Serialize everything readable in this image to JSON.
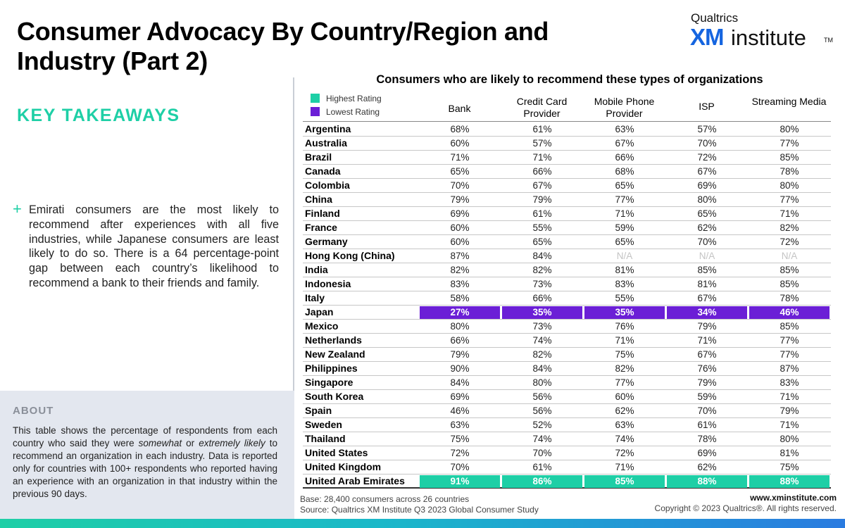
{
  "title": "Consumer Advocacy By Country/Region and Industry (Part 2)",
  "logo": {
    "small": "Qualtrics",
    "xm": "XM",
    "institute": "institute",
    "tm": "TM"
  },
  "key_takeaways": {
    "heading": "KEY TAKEAWAYS",
    "plus": "+",
    "text": "Emirati consumers are the most likely to recommend after experiences with all five industries, while Japanese consumers are least likely to do so. There is a 64 percentage-point gap between each country’s likelihood to recommend a bank to their friends and family."
  },
  "about": {
    "heading": "ABOUT",
    "text_before": "This table shows the percentage of respondents from each country who said they were ",
    "em1": "somewhat",
    "text_mid": " or ",
    "em2": "extremely likely",
    "text_after": " to recommend an organization in each industry. Data is reported only for countries with 100+ respondents who reported having an experience with an organization in that industry within the previous 90 days."
  },
  "footer": {
    "base": "Base: 28,400 consumers across 26 countries",
    "source": "Source: Qualtrics XM Institute Q3 2023 Global Consumer Study",
    "site": "www.xminstitute.com",
    "copyright": "Copyright © 2023 Qualtrics®. All rights reserved."
  },
  "colors": {
    "highest": "#1ecfa6",
    "lowest": "#6b1fd6",
    "na": "#c4c4c4",
    "brand": "#1565e0"
  },
  "chart_data": {
    "type": "table",
    "title": "Consumers who are likely to recommend these types of organizations",
    "legend": [
      {
        "label": "Highest Rating",
        "color": "#1ecfa6"
      },
      {
        "label": "Lowest Rating",
        "color": "#6b1fd6"
      }
    ],
    "columns": [
      "Bank",
      "Credit Card Provider",
      "Mobile Phone Provider",
      "ISP",
      "Streaming Media"
    ],
    "rows": [
      {
        "country": "Argentina",
        "values": [
          "68%",
          "61%",
          "63%",
          "57%",
          "80%"
        ]
      },
      {
        "country": "Australia",
        "values": [
          "60%",
          "57%",
          "67%",
          "70%",
          "77%"
        ]
      },
      {
        "country": "Brazil",
        "values": [
          "71%",
          "71%",
          "66%",
          "72%",
          "85%"
        ]
      },
      {
        "country": "Canada",
        "values": [
          "65%",
          "66%",
          "68%",
          "67%",
          "78%"
        ]
      },
      {
        "country": "Colombia",
        "values": [
          "70%",
          "67%",
          "65%",
          "69%",
          "80%"
        ]
      },
      {
        "country": "China",
        "values": [
          "79%",
          "79%",
          "77%",
          "80%",
          "77%"
        ]
      },
      {
        "country": "Finland",
        "values": [
          "69%",
          "61%",
          "71%",
          "65%",
          "71%"
        ]
      },
      {
        "country": "France",
        "values": [
          "60%",
          "55%",
          "59%",
          "62%",
          "82%"
        ]
      },
      {
        "country": "Germany",
        "values": [
          "60%",
          "65%",
          "65%",
          "70%",
          "72%"
        ]
      },
      {
        "country": "Hong Kong (China)",
        "values": [
          "87%",
          "84%",
          "N/A",
          "N/A",
          "N/A"
        ]
      },
      {
        "country": "India",
        "values": [
          "82%",
          "82%",
          "81%",
          "85%",
          "85%"
        ]
      },
      {
        "country": "Indonesia",
        "values": [
          "83%",
          "73%",
          "83%",
          "81%",
          "85%"
        ]
      },
      {
        "country": "Italy",
        "values": [
          "58%",
          "66%",
          "55%",
          "67%",
          "78%"
        ]
      },
      {
        "country": "Japan",
        "values": [
          "27%",
          "35%",
          "35%",
          "34%",
          "46%"
        ],
        "highlight": "lowest"
      },
      {
        "country": "Mexico",
        "values": [
          "80%",
          "73%",
          "76%",
          "79%",
          "85%"
        ]
      },
      {
        "country": "Netherlands",
        "values": [
          "66%",
          "74%",
          "71%",
          "71%",
          "77%"
        ]
      },
      {
        "country": "New Zealand",
        "values": [
          "79%",
          "82%",
          "75%",
          "67%",
          "77%"
        ]
      },
      {
        "country": "Philippines",
        "values": [
          "90%",
          "84%",
          "82%",
          "76%",
          "87%"
        ]
      },
      {
        "country": "Singapore",
        "values": [
          "84%",
          "80%",
          "77%",
          "79%",
          "83%"
        ]
      },
      {
        "country": "South Korea",
        "values": [
          "69%",
          "56%",
          "60%",
          "59%",
          "71%"
        ]
      },
      {
        "country": "Spain",
        "values": [
          "46%",
          "56%",
          "62%",
          "70%",
          "79%"
        ]
      },
      {
        "country": "Sweden",
        "values": [
          "63%",
          "52%",
          "63%",
          "61%",
          "71%"
        ]
      },
      {
        "country": "Thailand",
        "values": [
          "75%",
          "74%",
          "74%",
          "78%",
          "80%"
        ]
      },
      {
        "country": "United States",
        "values": [
          "72%",
          "70%",
          "72%",
          "69%",
          "81%"
        ]
      },
      {
        "country": "United Kingdom",
        "values": [
          "70%",
          "61%",
          "71%",
          "62%",
          "75%"
        ]
      },
      {
        "country": "United Arab Emirates",
        "values": [
          "91%",
          "86%",
          "85%",
          "88%",
          "88%"
        ],
        "highlight": "highest"
      }
    ]
  }
}
